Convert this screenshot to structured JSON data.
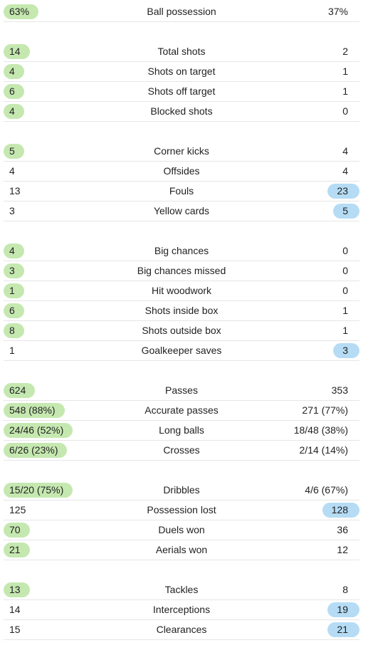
{
  "colors": {
    "home_highlight": "#c5e8b0",
    "away_highlight": "#b5dcf4"
  },
  "groups": [
    {
      "rows": [
        {
          "label": "Ball possession",
          "home": "63%",
          "away": "37%",
          "highlight": "home"
        }
      ]
    },
    {
      "rows": [
        {
          "label": "Total shots",
          "home": "14",
          "away": "2",
          "highlight": "home"
        },
        {
          "label": "Shots on target",
          "home": "4",
          "away": "1",
          "highlight": "home"
        },
        {
          "label": "Shots off target",
          "home": "6",
          "away": "1",
          "highlight": "home"
        },
        {
          "label": "Blocked shots",
          "home": "4",
          "away": "0",
          "highlight": "home"
        }
      ]
    },
    {
      "rows": [
        {
          "label": "Corner kicks",
          "home": "5",
          "away": "4",
          "highlight": "home"
        },
        {
          "label": "Offsides",
          "home": "4",
          "away": "4",
          "highlight": "none"
        },
        {
          "label": "Fouls",
          "home": "13",
          "away": "23",
          "highlight": "away"
        },
        {
          "label": "Yellow cards",
          "home": "3",
          "away": "5",
          "highlight": "away"
        }
      ]
    },
    {
      "rows": [
        {
          "label": "Big chances",
          "home": "4",
          "away": "0",
          "highlight": "home"
        },
        {
          "label": "Big chances missed",
          "home": "3",
          "away": "0",
          "highlight": "home"
        },
        {
          "label": "Hit woodwork",
          "home": "1",
          "away": "0",
          "highlight": "home"
        },
        {
          "label": "Shots inside box",
          "home": "6",
          "away": "1",
          "highlight": "home"
        },
        {
          "label": "Shots outside box",
          "home": "8",
          "away": "1",
          "highlight": "home"
        },
        {
          "label": "Goalkeeper saves",
          "home": "1",
          "away": "3",
          "highlight": "away"
        }
      ]
    },
    {
      "rows": [
        {
          "label": "Passes",
          "home": "624",
          "away": "353",
          "highlight": "home"
        },
        {
          "label": "Accurate passes",
          "home": "548 (88%)",
          "away": "271 (77%)",
          "highlight": "home"
        },
        {
          "label": "Long balls",
          "home": "24/46 (52%)",
          "away": "18/48 (38%)",
          "highlight": "home"
        },
        {
          "label": "Crosses",
          "home": "6/26 (23%)",
          "away": "2/14 (14%)",
          "highlight": "home"
        }
      ]
    },
    {
      "rows": [
        {
          "label": "Dribbles",
          "home": "15/20 (75%)",
          "away": "4/6 (67%)",
          "highlight": "home"
        },
        {
          "label": "Possession lost",
          "home": "125",
          "away": "128",
          "highlight": "away"
        },
        {
          "label": "Duels won",
          "home": "70",
          "away": "36",
          "highlight": "home"
        },
        {
          "label": "Aerials won",
          "home": "21",
          "away": "12",
          "highlight": "home"
        }
      ]
    },
    {
      "rows": [
        {
          "label": "Tackles",
          "home": "13",
          "away": "8",
          "highlight": "home"
        },
        {
          "label": "Interceptions",
          "home": "14",
          "away": "19",
          "highlight": "away"
        },
        {
          "label": "Clearances",
          "home": "15",
          "away": "21",
          "highlight": "away"
        }
      ]
    }
  ]
}
